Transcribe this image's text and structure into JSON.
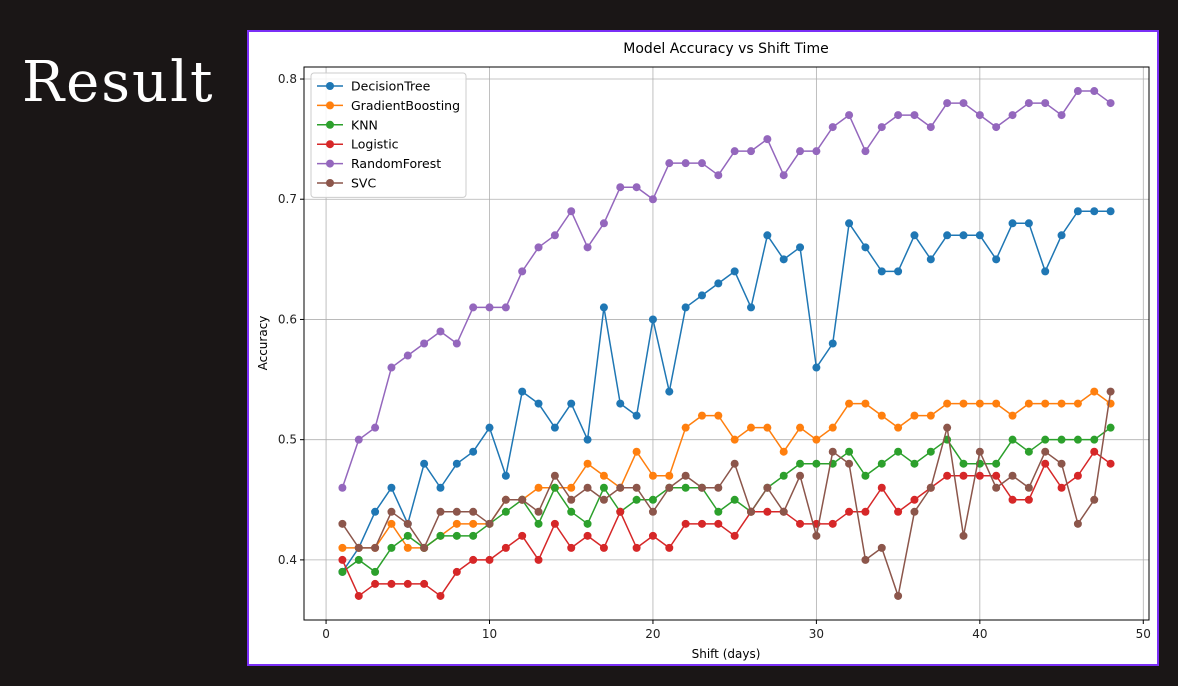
{
  "slide": {
    "title": "Result"
  },
  "chart_data": {
    "type": "line",
    "title": "Model Accuracy vs Shift Time",
    "xlabel": "Shift (days)",
    "ylabel": "Accuracy",
    "xlim": [
      -1.35,
      50.35
    ],
    "ylim": [
      0.35,
      0.81
    ],
    "xticks": [
      0,
      10,
      20,
      30,
      40,
      50
    ],
    "yticks": [
      0.4,
      0.5,
      0.6,
      0.7,
      0.8
    ],
    "grid": true,
    "legend_position": "top-left",
    "x": [
      1,
      2,
      3,
      4,
      5,
      6,
      7,
      8,
      9,
      10,
      11,
      12,
      13,
      14,
      15,
      16,
      17,
      18,
      19,
      20,
      21,
      22,
      23,
      24,
      25,
      26,
      27,
      28,
      29,
      30,
      31,
      32,
      33,
      34,
      35,
      36,
      37,
      38,
      39,
      40,
      41,
      42,
      43,
      44,
      45,
      46,
      47,
      48
    ],
    "series": [
      {
        "name": "DecisionTree",
        "color": "#1f77b4",
        "values": [
          0.39,
          0.41,
          0.44,
          0.46,
          0.43,
          0.48,
          0.46,
          0.48,
          0.49,
          0.51,
          0.47,
          0.54,
          0.53,
          0.51,
          0.53,
          0.5,
          0.61,
          0.53,
          0.52,
          0.6,
          0.54,
          0.61,
          0.62,
          0.63,
          0.64,
          0.61,
          0.67,
          0.65,
          0.66,
          0.56,
          0.58,
          0.68,
          0.66,
          0.64,
          0.64,
          0.67,
          0.65,
          0.67,
          0.67,
          0.67,
          0.65,
          0.68,
          0.68,
          0.64,
          0.67,
          0.69,
          0.69,
          0.69
        ]
      },
      {
        "name": "GradientBoosting",
        "color": "#ff7f0e",
        "values": [
          0.41,
          0.41,
          0.41,
          0.43,
          0.41,
          0.41,
          0.42,
          0.43,
          0.43,
          0.43,
          0.45,
          0.45,
          0.46,
          0.46,
          0.46,
          0.48,
          0.47,
          0.46,
          0.49,
          0.47,
          0.47,
          0.51,
          0.52,
          0.52,
          0.5,
          0.51,
          0.51,
          0.49,
          0.51,
          0.5,
          0.51,
          0.53,
          0.53,
          0.52,
          0.51,
          0.52,
          0.52,
          0.53,
          0.53,
          0.53,
          0.53,
          0.52,
          0.53,
          0.53,
          0.53,
          0.53,
          0.54,
          0.53
        ]
      },
      {
        "name": "KNN",
        "color": "#2ca02c",
        "values": [
          0.39,
          0.4,
          0.39,
          0.41,
          0.42,
          0.41,
          0.42,
          0.42,
          0.42,
          0.43,
          0.44,
          0.45,
          0.43,
          0.46,
          0.44,
          0.43,
          0.46,
          0.44,
          0.45,
          0.45,
          0.46,
          0.46,
          0.46,
          0.44,
          0.45,
          0.44,
          0.46,
          0.47,
          0.48,
          0.48,
          0.48,
          0.49,
          0.47,
          0.48,
          0.49,
          0.48,
          0.49,
          0.5,
          0.48,
          0.48,
          0.48,
          0.5,
          0.49,
          0.5,
          0.5,
          0.5,
          0.5,
          0.51
        ]
      },
      {
        "name": "Logistic",
        "color": "#d62728",
        "values": [
          0.4,
          0.37,
          0.38,
          0.38,
          0.38,
          0.38,
          0.37,
          0.39,
          0.4,
          0.4,
          0.41,
          0.42,
          0.4,
          0.43,
          0.41,
          0.42,
          0.41,
          0.44,
          0.41,
          0.42,
          0.41,
          0.43,
          0.43,
          0.43,
          0.42,
          0.44,
          0.44,
          0.44,
          0.43,
          0.43,
          0.43,
          0.44,
          0.44,
          0.46,
          0.44,
          0.45,
          0.46,
          0.47,
          0.47,
          0.47,
          0.47,
          0.45,
          0.45,
          0.48,
          0.46,
          0.47,
          0.49,
          0.48
        ]
      },
      {
        "name": "RandomForest",
        "color": "#9467bd",
        "values": [
          0.46,
          0.5,
          0.51,
          0.56,
          0.57,
          0.58,
          0.59,
          0.58,
          0.61,
          0.61,
          0.61,
          0.64,
          0.66,
          0.67,
          0.69,
          0.66,
          0.68,
          0.71,
          0.71,
          0.7,
          0.73,
          0.73,
          0.73,
          0.72,
          0.74,
          0.74,
          0.75,
          0.72,
          0.74,
          0.74,
          0.76,
          0.77,
          0.74,
          0.76,
          0.77,
          0.77,
          0.76,
          0.78,
          0.78,
          0.77,
          0.76,
          0.77,
          0.78,
          0.78,
          0.77,
          0.79,
          0.79,
          0.78
        ]
      },
      {
        "name": "SVC",
        "color": "#8c564b",
        "values": [
          0.43,
          0.41,
          0.41,
          0.44,
          0.43,
          0.41,
          0.44,
          0.44,
          0.44,
          0.43,
          0.45,
          0.45,
          0.44,
          0.47,
          0.45,
          0.46,
          0.45,
          0.46,
          0.46,
          0.44,
          0.46,
          0.47,
          0.46,
          0.46,
          0.48,
          0.44,
          0.46,
          0.44,
          0.47,
          0.42,
          0.49,
          0.48,
          0.4,
          0.41,
          0.37,
          0.44,
          0.46,
          0.51,
          0.42,
          0.49,
          0.46,
          0.47,
          0.46,
          0.49,
          0.48,
          0.43,
          0.45,
          0.54
        ]
      }
    ]
  }
}
